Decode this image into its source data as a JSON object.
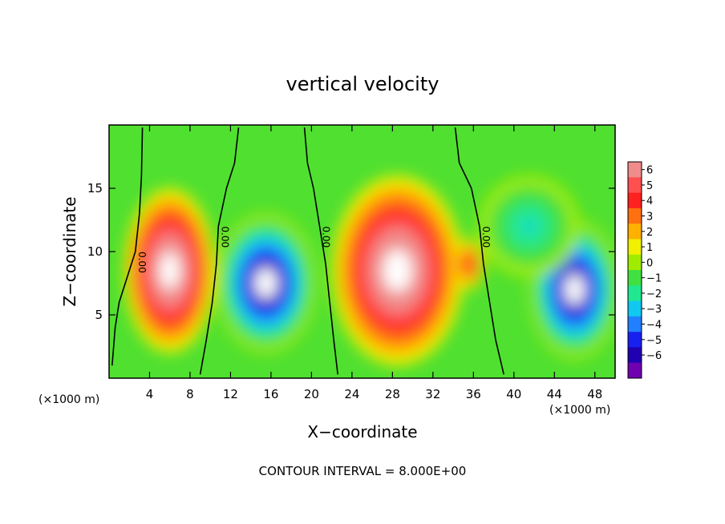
{
  "chart_data": {
    "type": "heatmap",
    "title": "vertical velocity",
    "xlabel": "X−coordinate",
    "ylabel": "Z−coordinate",
    "x_unit_left": "(×1000 m)",
    "x_unit_right": "(×1000 m)",
    "footer": "CONTOUR INTERVAL = 8.000E+00",
    "xlim": [
      0,
      50
    ],
    "ylim": [
      0,
      20
    ],
    "x_ticks": [
      4,
      8,
      12,
      16,
      20,
      24,
      28,
      32,
      36,
      40,
      44,
      48
    ],
    "y_ticks": [
      5,
      10,
      15
    ],
    "colorbar": {
      "levels": [
        6,
        5,
        4,
        3,
        2,
        1,
        0,
        -1,
        -2,
        -3,
        -4,
        -5,
        -6
      ],
      "labels": [
        "6",
        "5",
        "4",
        "3",
        "2",
        "1",
        "0",
        "−1",
        "−2",
        "−3",
        "−4",
        "−5",
        "−6"
      ],
      "colors": [
        "#f08c8c",
        "#ff5050",
        "#ff2020",
        "#ff7010",
        "#ffb000",
        "#f0f000",
        "#a0ec00",
        "#40e040",
        "#20e890",
        "#10c8f0",
        "#2080ff",
        "#1820f0",
        "#2000b0",
        "#7000b0"
      ]
    },
    "zero_contour_label": "0.00",
    "zero_contours": [
      [
        [
          0.3,
          1
        ],
        [
          0.6,
          4
        ],
        [
          1.0,
          6
        ],
        [
          1.8,
          8
        ],
        [
          2.6,
          10
        ],
        [
          3.0,
          13
        ],
        [
          3.2,
          16
        ],
        [
          3.3,
          19.8
        ]
      ],
      [
        [
          9.0,
          0.3
        ],
        [
          9.6,
          3
        ],
        [
          10.2,
          6
        ],
        [
          10.6,
          9
        ],
        [
          10.8,
          12
        ],
        [
          11.6,
          15
        ],
        [
          12.4,
          17
        ],
        [
          12.8,
          19.8
        ]
      ],
      [
        [
          22.6,
          0.3
        ],
        [
          22.2,
          3
        ],
        [
          21.8,
          6
        ],
        [
          21.4,
          9
        ],
        [
          20.8,
          12
        ],
        [
          20.2,
          15
        ],
        [
          19.6,
          17
        ],
        [
          19.3,
          19.8
        ]
      ],
      [
        [
          39.0,
          0.3
        ],
        [
          38.2,
          3
        ],
        [
          37.6,
          6
        ],
        [
          37.0,
          9
        ],
        [
          36.6,
          12
        ],
        [
          35.8,
          15
        ],
        [
          34.6,
          17
        ],
        [
          34.2,
          19.8
        ]
      ]
    ],
    "blobs": [
      {
        "x": 6.0,
        "z": 8.5,
        "rx": 4.5,
        "rz": 6.5,
        "w": 8
      },
      {
        "x": 28.5,
        "z": 8.5,
        "rx": 6.5,
        "rz": 7.5,
        "w": 8
      },
      {
        "x": 15.5,
        "z": 7.5,
        "rx": 5.0,
        "rz": 5.5,
        "w": -8
      },
      {
        "x": 46.0,
        "z": 7.0,
        "rx": 4.5,
        "rz": 5.5,
        "w": -8
      },
      {
        "x": 35.5,
        "z": 9.0,
        "rx": 1.5,
        "rz": 2.0,
        "w": 4
      },
      {
        "x": 41.5,
        "z": 12.0,
        "rx": 5.0,
        "rz": 4.0,
        "w": -3
      }
    ]
  }
}
